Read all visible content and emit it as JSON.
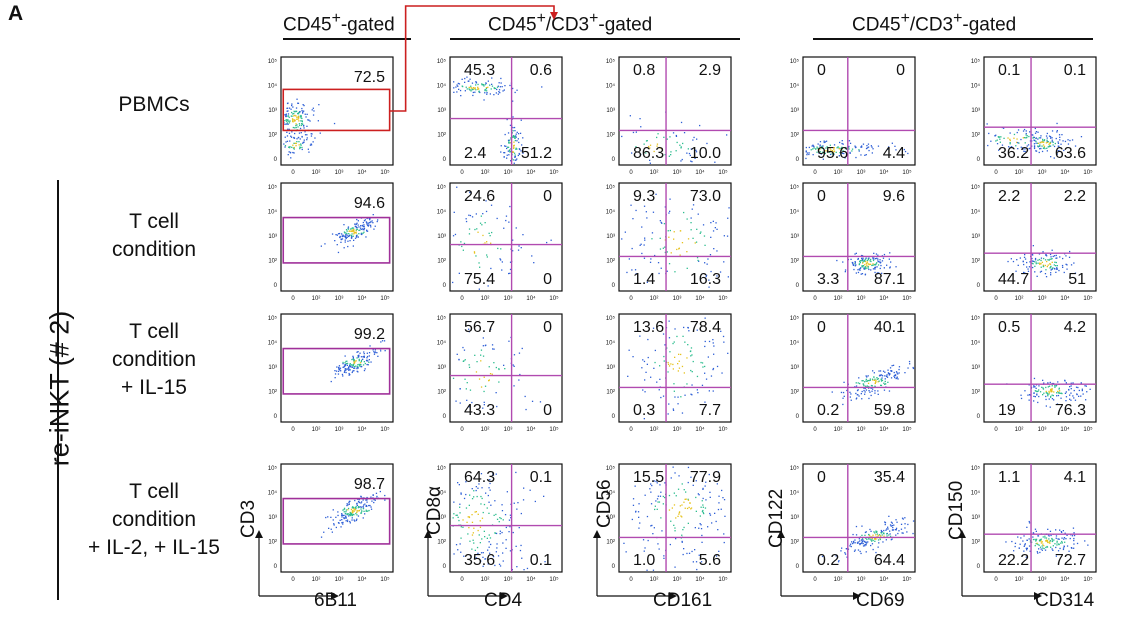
{
  "panel_letter": "A",
  "gate_titles": [
    {
      "base": "CD45",
      "sup": "+",
      "rest": "-gated"
    },
    {
      "base": "CD45",
      "sup": "+",
      "mid": "/CD3",
      "sup2": "+",
      "rest": "-gated"
    },
    {
      "base": "CD45",
      "sup": "+",
      "mid": "/CD3",
      "sup2": "+",
      "rest": "-gated"
    }
  ],
  "side_label": "re-iNKT (# 2)",
  "row_labels": [
    [
      "PBMCs"
    ],
    [
      "T cell",
      "condition"
    ],
    [
      "T cell",
      "condition",
      "+ IL-15"
    ],
    [
      "T cell",
      "condition",
      "+ IL-2, + IL-15"
    ]
  ],
  "axis_labels": [
    {
      "x": "6B11",
      "y": "CD3"
    },
    {
      "x": "CD4",
      "y": "CD8α"
    },
    {
      "x": "CD161",
      "y": "CD56"
    },
    {
      "x": "CD69",
      "y": "CD122"
    },
    {
      "x": "CD314",
      "y": "CD150"
    }
  ],
  "tick_labels": {
    "x": [
      "0",
      "10²",
      "10³",
      "10⁴",
      "10⁵"
    ],
    "y": [
      "10⁵",
      "10⁴",
      "10³",
      "10²",
      "0"
    ]
  },
  "colors": {
    "gate_red": "#cc1f1f",
    "gate_purple": "#a0309a",
    "quad_line": "#b14ab0",
    "dot_blue": "#2e5fd6",
    "dot_core": "#e6c21d"
  },
  "chart_data": [
    {
      "type": "scatter",
      "row": "PBMCs",
      "x": "6B11",
      "y": "CD3",
      "gate": "rectangle",
      "gate_percent": "72.5"
    },
    {
      "type": "scatter",
      "row": "PBMCs",
      "x": "CD4",
      "y": "CD8α",
      "quadrants": {
        "ul": "45.3",
        "ur": "0.6",
        "ll": "2.4",
        "lr": "51.2"
      }
    },
    {
      "type": "scatter",
      "row": "PBMCs",
      "x": "CD161",
      "y": "CD56",
      "quadrants": {
        "ul": "0.8",
        "ur": "2.9",
        "ll": "86.3",
        "lr": "10.0"
      }
    },
    {
      "type": "scatter",
      "row": "PBMCs",
      "x": "CD69",
      "y": "CD122",
      "quadrants": {
        "ul": "0",
        "ur": "0",
        "ll": "95.6",
        "lr": "4.4"
      }
    },
    {
      "type": "scatter",
      "row": "PBMCs",
      "x": "CD314",
      "y": "CD150",
      "quadrants": {
        "ul": "0.1",
        "ur": "0.1",
        "ll": "36.2",
        "lr": "63.6"
      }
    },
    {
      "type": "scatter",
      "row": "T cell condition",
      "x": "6B11",
      "y": "CD3",
      "gate": "rectangle",
      "gate_percent": "94.6"
    },
    {
      "type": "scatter",
      "row": "T cell condition",
      "x": "CD4",
      "y": "CD8α",
      "quadrants": {
        "ul": "24.6",
        "ur": "0",
        "ll": "75.4",
        "lr": "0"
      }
    },
    {
      "type": "scatter",
      "row": "T cell condition",
      "x": "CD161",
      "y": "CD56",
      "quadrants": {
        "ul": "9.3",
        "ur": "73.0",
        "ll": "1.4",
        "lr": "16.3"
      }
    },
    {
      "type": "scatter",
      "row": "T cell condition",
      "x": "CD69",
      "y": "CD122",
      "quadrants": {
        "ul": "0",
        "ur": "9.6",
        "ll": "3.3",
        "lr": "87.1"
      }
    },
    {
      "type": "scatter",
      "row": "T cell condition",
      "x": "CD314",
      "y": "CD150",
      "quadrants": {
        "ul": "2.2",
        "ur": "2.2",
        "ll": "44.7",
        "lr": "51"
      }
    },
    {
      "type": "scatter",
      "row": "T cell condition + IL-15",
      "x": "6B11",
      "y": "CD3",
      "gate": "rectangle",
      "gate_percent": "99.2"
    },
    {
      "type": "scatter",
      "row": "T cell condition + IL-15",
      "x": "CD4",
      "y": "CD8α",
      "quadrants": {
        "ul": "56.7",
        "ur": "0",
        "ll": "43.3",
        "lr": "0"
      }
    },
    {
      "type": "scatter",
      "row": "T cell condition + IL-15",
      "x": "CD161",
      "y": "CD56",
      "quadrants": {
        "ul": "13.6",
        "ur": "78.4",
        "ll": "0.3",
        "lr": "7.7"
      }
    },
    {
      "type": "scatter",
      "row": "T cell condition + IL-15",
      "x": "CD69",
      "y": "CD122",
      "quadrants": {
        "ul": "0",
        "ur": "40.1",
        "ll": "0.2",
        "lr": "59.8"
      }
    },
    {
      "type": "scatter",
      "row": "T cell condition + IL-15",
      "x": "CD314",
      "y": "CD150",
      "quadrants": {
        "ul": "0.5",
        "ur": "4.2",
        "ll": "19",
        "lr": "76.3"
      }
    },
    {
      "type": "scatter",
      "row": "T cell condition + IL-2, + IL-15",
      "x": "6B11",
      "y": "CD3",
      "gate": "rectangle",
      "gate_percent": "98.7"
    },
    {
      "type": "scatter",
      "row": "T cell condition + IL-2, + IL-15",
      "x": "CD4",
      "y": "CD8α",
      "quadrants": {
        "ul": "64.3",
        "ur": "0.1",
        "ll": "35.6",
        "lr": "0.1"
      }
    },
    {
      "type": "scatter",
      "row": "T cell condition + IL-2, + IL-15",
      "x": "CD161",
      "y": "CD56",
      "quadrants": {
        "ul": "15.5",
        "ur": "77.9",
        "ll": "1.0",
        "lr": "5.6"
      }
    },
    {
      "type": "scatter",
      "row": "T cell condition + IL-2, + IL-15",
      "x": "CD69",
      "y": "CD122",
      "quadrants": {
        "ul": "0",
        "ur": "35.4",
        "ll": "0.2",
        "lr": "64.4"
      }
    },
    {
      "type": "scatter",
      "row": "T cell condition + IL-2, + IL-15",
      "x": "CD314",
      "y": "CD150",
      "quadrants": {
        "ul": "1.1",
        "ur": "4.1",
        "ll": "22.2",
        "lr": "72.7"
      }
    }
  ]
}
